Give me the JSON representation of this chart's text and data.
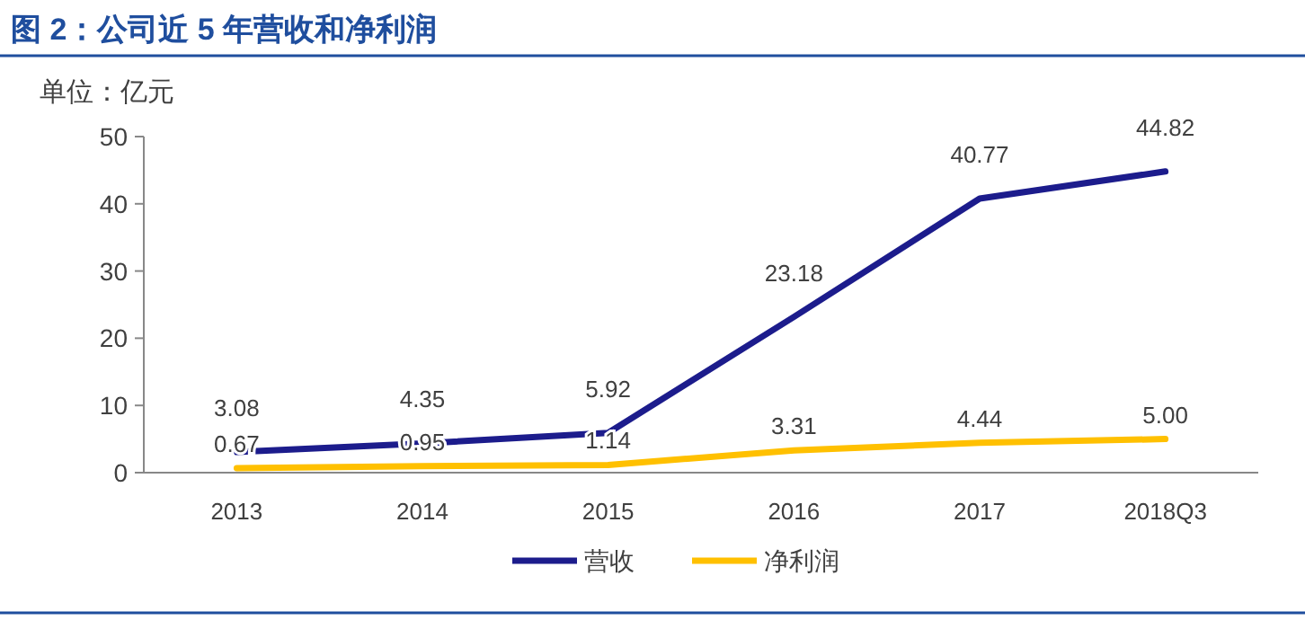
{
  "chart_data": {
    "type": "line",
    "title": "图 2：公司近 5 年营收和净利润",
    "ylabel": "单位：亿元",
    "categories": [
      "2013",
      "2014",
      "2015",
      "2016",
      "2017",
      "2018Q3"
    ],
    "series": [
      {
        "name": "营收",
        "color": "#1c1c8c",
        "values": [
          3.08,
          4.35,
          5.92,
          23.18,
          40.77,
          44.82
        ],
        "value_labels": [
          "3.08",
          "4.35",
          "5.92",
          "23.18",
          "40.77",
          "44.82"
        ]
      },
      {
        "name": "净利润",
        "color": "#ffc000",
        "values": [
          0.67,
          0.95,
          1.14,
          3.31,
          4.44,
          5.0
        ],
        "value_labels": [
          "0.67",
          "0.95",
          "1.14",
          "3.31",
          "4.44",
          "5.00"
        ]
      }
    ],
    "ylim": [
      0,
      50
    ],
    "yticks": [
      0,
      10,
      20,
      30,
      40,
      50
    ],
    "legend": "bottom",
    "grid": false,
    "marker": "none",
    "line_style": "solid"
  }
}
